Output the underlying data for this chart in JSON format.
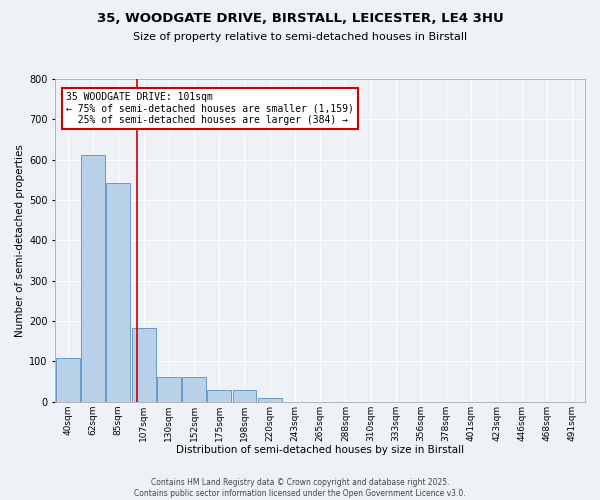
{
  "title_line1": "35, WOODGATE DRIVE, BIRSTALL, LEICESTER, LE4 3HU",
  "title_line2": "Size of property relative to semi-detached houses in Birstall",
  "xlabel": "Distribution of semi-detached houses by size in Birstall",
  "ylabel": "Number of semi-detached properties",
  "footer_line1": "Contains HM Land Registry data © Crown copyright and database right 2025.",
  "footer_line2": "Contains public sector information licensed under the Open Government Licence v3.0.",
  "categories": [
    "40sqm",
    "62sqm",
    "85sqm",
    "107sqm",
    "130sqm",
    "152sqm",
    "175sqm",
    "198sqm",
    "220sqm",
    "243sqm",
    "265sqm",
    "288sqm",
    "310sqm",
    "333sqm",
    "356sqm",
    "378sqm",
    "401sqm",
    "423sqm",
    "446sqm",
    "468sqm",
    "491sqm"
  ],
  "values": [
    108,
    612,
    543,
    183,
    62,
    62,
    28,
    28,
    10,
    0,
    0,
    0,
    0,
    0,
    0,
    0,
    0,
    0,
    0,
    0,
    0
  ],
  "bar_color": "#b8d0e8",
  "bar_edge_color": "#6699cc",
  "background_color": "#eef2f7",
  "grid_color": "#ffffff",
  "annotation_box_color": "#cc0000",
  "property_line_color": "#cc0000",
  "property_label": "35 WOODGATE DRIVE: 101sqm",
  "pct_smaller": 75,
  "count_smaller": 1159,
  "pct_larger": 25,
  "count_larger": 384,
  "ylim": [
    0,
    800
  ],
  "yticks": [
    0,
    100,
    200,
    300,
    400,
    500,
    600,
    700,
    800
  ]
}
